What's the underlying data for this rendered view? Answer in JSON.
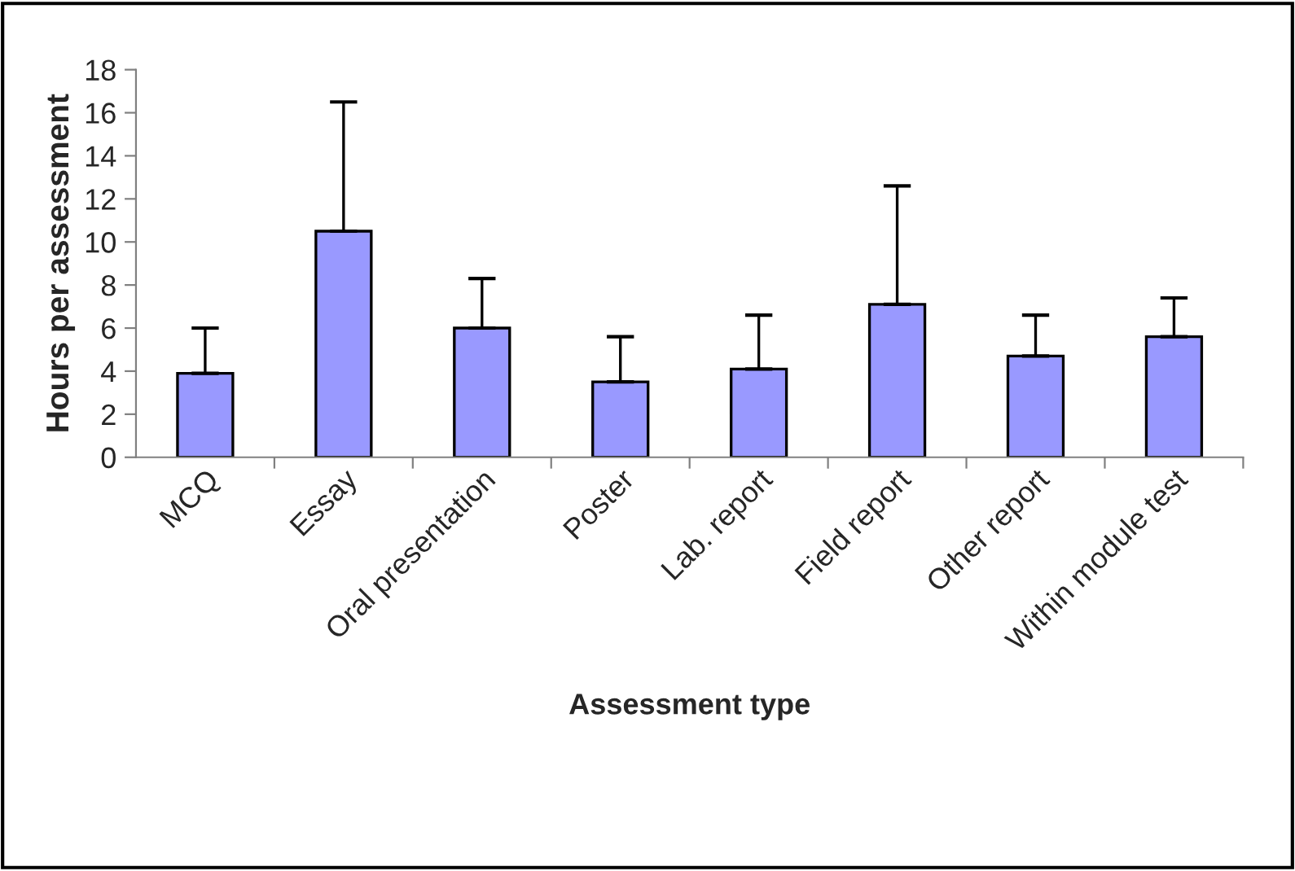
{
  "chart_data": {
    "type": "bar",
    "xlabel": "Assessment type",
    "ylabel": "Hours per assessment",
    "categories": [
      "MCQ",
      "Essay",
      "Oral presentation",
      "Poster",
      "Lab. report",
      "Field report",
      "Other report",
      "Within module test"
    ],
    "values": [
      3.9,
      10.5,
      6.0,
      3.5,
      4.1,
      7.1,
      4.7,
      5.6
    ],
    "errors": [
      [
        3.9,
        6.0
      ],
      [
        10.5,
        16.5
      ],
      [
        6.0,
        8.3
      ],
      [
        3.5,
        5.6
      ],
      [
        4.1,
        6.6
      ],
      [
        7.1,
        12.6
      ],
      [
        4.7,
        6.6
      ],
      [
        5.6,
        7.4
      ]
    ],
    "color": "#9999ff",
    "ylim": [
      0,
      18
    ],
    "yticks": [
      0,
      2,
      4,
      6,
      8,
      10,
      12,
      14,
      16,
      18
    ],
    "grid": false
  }
}
